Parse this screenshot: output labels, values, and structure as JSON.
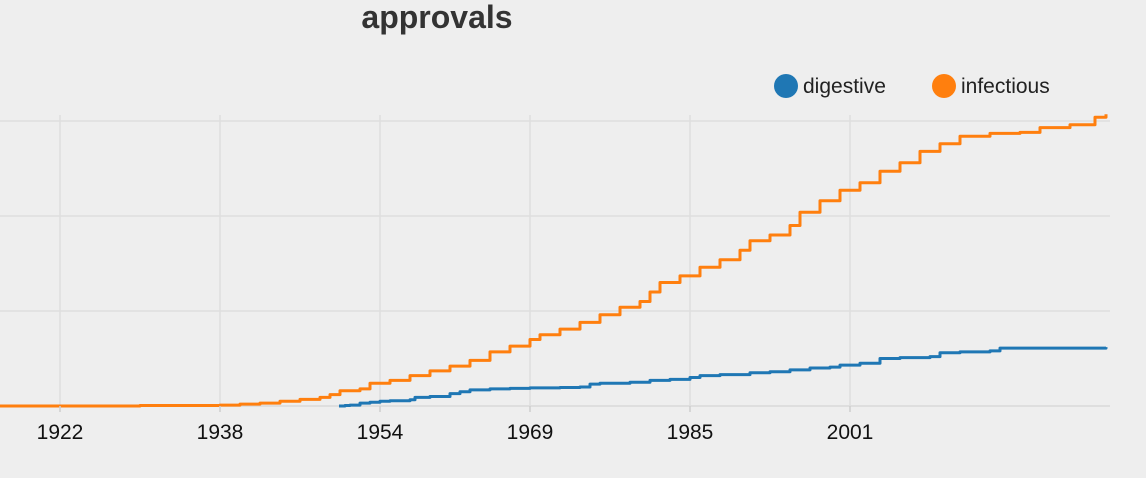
{
  "chart_data": {
    "type": "line",
    "title": "approvals",
    "xlabel": "",
    "ylabel": "",
    "xlim": [
      1916,
      2027
    ],
    "ylim": [
      0,
      300
    ],
    "x_ticks": [
      1922,
      1938,
      1954,
      1969,
      1985,
      2001
    ],
    "y_gridlines": [
      0,
      100,
      200,
      300
    ],
    "legend_position": "top-right",
    "series": [
      {
        "name": "digestive",
        "color": "#1f77b4",
        "points": [
          [
            1949.9,
            0
          ],
          [
            1950.5,
            0.5
          ],
          [
            1951,
            1
          ],
          [
            1952,
            3
          ],
          [
            1953,
            4
          ],
          [
            1954,
            5
          ],
          [
            1955,
            5.5
          ],
          [
            1957,
            6.5
          ],
          [
            1957.5,
            9
          ],
          [
            1959,
            10
          ],
          [
            1961,
            13
          ],
          [
            1962,
            15
          ],
          [
            1963,
            17
          ],
          [
            1965,
            18
          ],
          [
            1967,
            18.5
          ],
          [
            1969,
            19
          ],
          [
            1972,
            19.5
          ],
          [
            1974,
            20
          ],
          [
            1975,
            23
          ],
          [
            1976,
            24
          ],
          [
            1979,
            25
          ],
          [
            1981,
            27
          ],
          [
            1983,
            28
          ],
          [
            1985,
            30
          ],
          [
            1986,
            32
          ],
          [
            1988,
            33
          ],
          [
            1991,
            35
          ],
          [
            1993,
            36
          ],
          [
            1995,
            38
          ],
          [
            1997,
            40
          ],
          [
            1999,
            41
          ],
          [
            2000,
            43
          ],
          [
            2002,
            45
          ],
          [
            2004,
            50
          ],
          [
            2006,
            51
          ],
          [
            2009,
            52
          ],
          [
            2010,
            56
          ],
          [
            2012,
            57
          ],
          [
            2015,
            58
          ],
          [
            2016,
            61
          ],
          [
            2026.6,
            62
          ]
        ]
      },
      {
        "name": "infectious",
        "color": "#ff7f0e",
        "points": [
          [
            1916,
            0
          ],
          [
            1930,
            0.5
          ],
          [
            1938,
            1
          ],
          [
            1940,
            2
          ],
          [
            1942,
            3
          ],
          [
            1944,
            5
          ],
          [
            1946,
            7
          ],
          [
            1948,
            9
          ],
          [
            1949,
            12
          ],
          [
            1950,
            16
          ],
          [
            1952,
            18
          ],
          [
            1953,
            24
          ],
          [
            1955,
            27
          ],
          [
            1957,
            32
          ],
          [
            1959,
            37
          ],
          [
            1961,
            42
          ],
          [
            1963,
            48
          ],
          [
            1965,
            57
          ],
          [
            1967,
            63
          ],
          [
            1969,
            70
          ],
          [
            1970,
            75
          ],
          [
            1972,
            81
          ],
          [
            1974,
            88
          ],
          [
            1976,
            96
          ],
          [
            1978,
            104
          ],
          [
            1980,
            110
          ],
          [
            1981,
            120
          ],
          [
            1982,
            130
          ],
          [
            1984,
            137
          ],
          [
            1986,
            146
          ],
          [
            1988,
            154
          ],
          [
            1990,
            164
          ],
          [
            1991,
            174
          ],
          [
            1993,
            180
          ],
          [
            1995,
            190
          ],
          [
            1996,
            204
          ],
          [
            1998,
            216
          ],
          [
            2000,
            227
          ],
          [
            2002,
            235
          ],
          [
            2004,
            247
          ],
          [
            2006,
            256
          ],
          [
            2008,
            268
          ],
          [
            2010,
            276
          ],
          [
            2012,
            284
          ],
          [
            2015,
            287
          ],
          [
            2018,
            288
          ],
          [
            2020,
            293
          ],
          [
            2023,
            296
          ],
          [
            2025.5,
            304
          ],
          [
            2026.6,
            307
          ]
        ]
      }
    ]
  }
}
